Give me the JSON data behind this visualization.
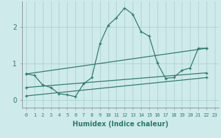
{
  "xlabel": "Humidex (Indice chaleur)",
  "background_color": "#ceeaea",
  "grid_color": "#aed0d0",
  "line_color": "#2d7a6a",
  "xlim": [
    -0.5,
    23.5
  ],
  "ylim": [
    -0.2,
    2.7
  ],
  "yticks": [
    0,
    1,
    2
  ],
  "xtick_labels": [
    "0",
    "1",
    "2",
    "3",
    "4",
    "5",
    "6",
    "7",
    "8",
    "9",
    "10",
    "11",
    "12",
    "13",
    "14",
    "15",
    "16",
    "17",
    "18",
    "19",
    "20",
    "21",
    "22",
    "23"
  ],
  "series1_x": [
    0,
    1,
    2,
    3,
    4,
    5,
    6,
    7,
    8,
    9,
    10,
    11,
    12,
    13,
    14,
    15,
    16,
    17,
    18,
    19,
    20,
    21,
    22
  ],
  "series1_y": [
    0.72,
    0.68,
    0.42,
    0.35,
    0.18,
    0.15,
    0.1,
    0.45,
    0.62,
    1.55,
    2.05,
    2.25,
    2.52,
    2.35,
    1.88,
    1.75,
    1.02,
    0.6,
    0.62,
    0.82,
    0.88,
    1.42,
    1.42
  ],
  "series2_x": [
    0,
    22
  ],
  "series2_y": [
    0.72,
    1.42
  ],
  "series3_x": [
    0,
    22
  ],
  "series3_y": [
    0.35,
    0.75
  ],
  "series4_x": [
    0,
    22
  ],
  "series4_y": [
    0.12,
    0.62
  ]
}
